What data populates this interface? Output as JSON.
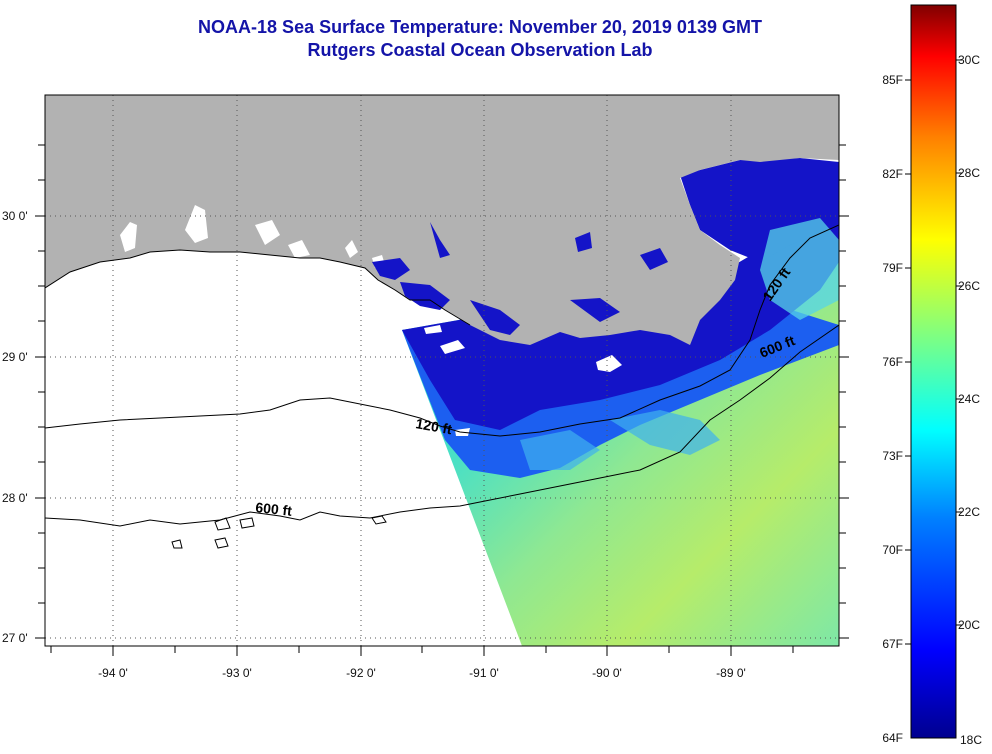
{
  "title": {
    "line1": "NOAA-18 Sea Surface Temperature:  November 20, 2019 0139 GMT",
    "line2": "Rutgers Coastal Ocean Observation Lab"
  },
  "map": {
    "lon_labels": [
      "-94 0'",
      "-93 0'",
      "-92 0'",
      "-91 0'",
      "-90 0'",
      "-89 0'"
    ],
    "lat_labels": [
      "30 0'",
      "29 0'",
      "28 0'",
      "27 0'"
    ],
    "contour_labels": [
      {
        "id": "c120_west",
        "text": "120 ft"
      },
      {
        "id": "c120_east",
        "text": "120 ft"
      },
      {
        "id": "c600_west",
        "text": "600 ft"
      },
      {
        "id": "c600_east",
        "text": "600 ft"
      }
    ],
    "colors": {
      "land": "#b2b2b2",
      "frame": "#000000",
      "grid": "#555555"
    }
  },
  "colorbar": {
    "f_labels": [
      "85F",
      "82F",
      "79F",
      "76F",
      "73F",
      "70F",
      "67F",
      "64F"
    ],
    "c_labels": [
      "30C",
      "28C",
      "26C",
      "24C",
      "22C",
      "20C",
      "18C"
    ],
    "min_c": 18,
    "max_c": 31.3
  }
}
